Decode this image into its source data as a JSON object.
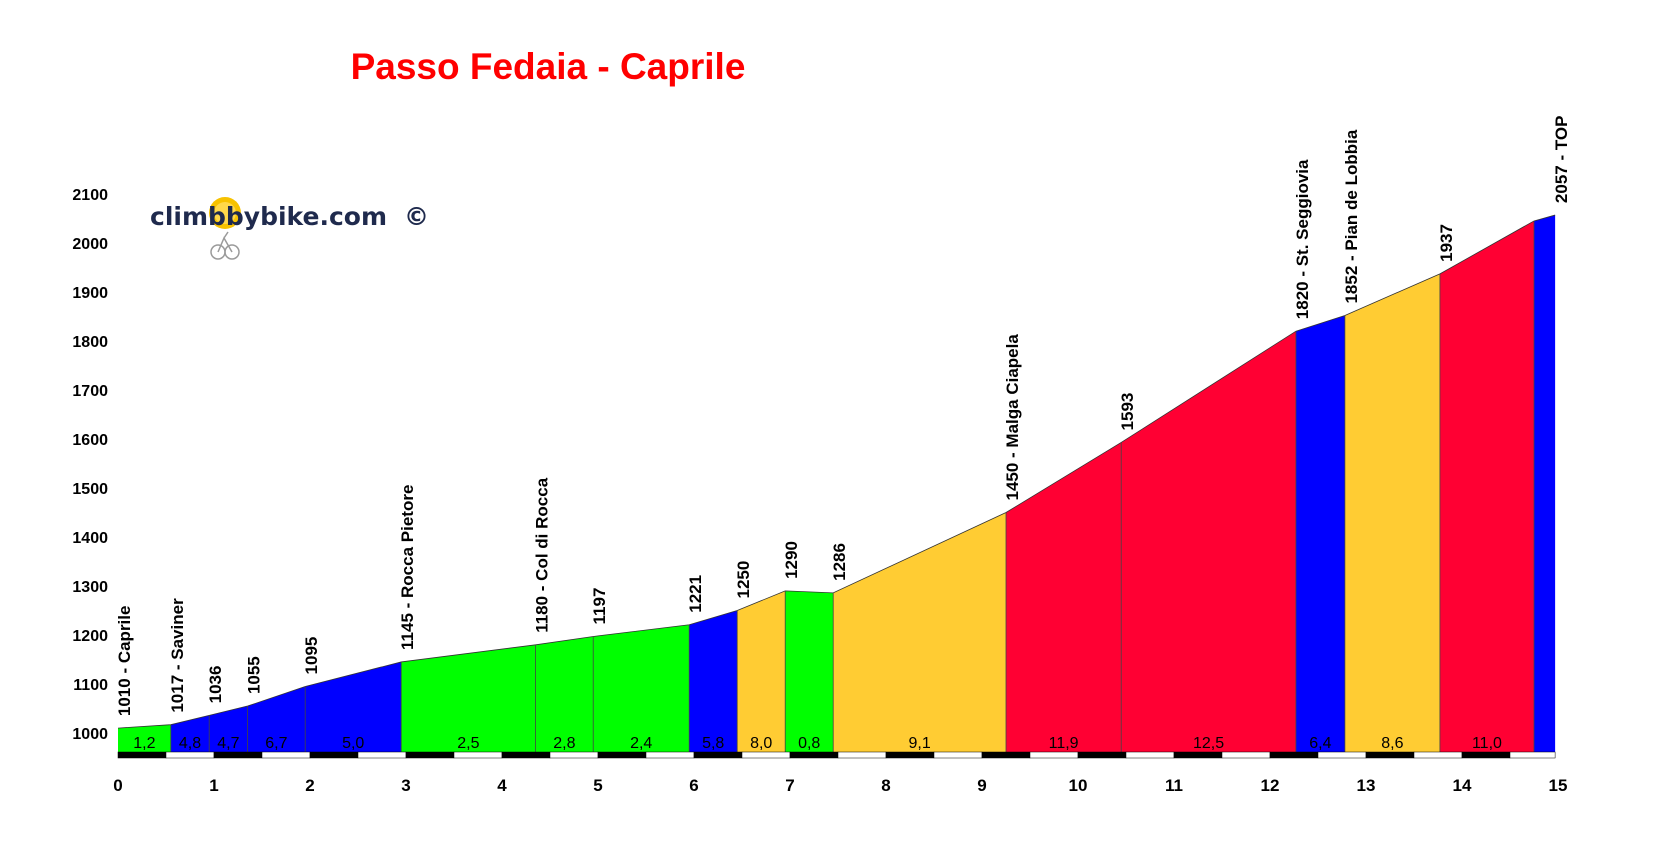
{
  "chart_data": {
    "type": "area",
    "title": "Passo Fedaia - Caprile",
    "xlabel": "",
    "ylabel": "",
    "xlim": [
      0,
      15
    ],
    "ylim": [
      950,
      2100
    ],
    "x_ticks": [
      "0",
      "1",
      "2",
      "3",
      "4",
      "5",
      "6",
      "7",
      "8",
      "9",
      "10",
      "11",
      "12",
      "13",
      "14",
      "15"
    ],
    "y_ticks": [
      1000,
      1100,
      1200,
      1300,
      1400,
      1500,
      1600,
      1700,
      1800,
      1900,
      2000,
      2100
    ],
    "grid": false,
    "colors": {
      "green": "#00ff00",
      "blue": "#0000ff",
      "orange": "#ffcc33",
      "red": "#ff0033"
    },
    "points": [
      {
        "x": 0,
        "y": 1010,
        "label": "1010 - Caprile"
      },
      {
        "x": 0.55,
        "y": 1017,
        "label": "1017 - Saviner"
      },
      {
        "x": 0.95,
        "y": 1036,
        "label": "1036"
      },
      {
        "x": 1.35,
        "y": 1055,
        "label": "1055"
      },
      {
        "x": 1.95,
        "y": 1095,
        "label": "1095"
      },
      {
        "x": 2.95,
        "y": 1145,
        "label": "1145 - Rocca Pietore"
      },
      {
        "x": 4.35,
        "y": 1180,
        "label": "1180 - Col di Rocca"
      },
      {
        "x": 4.95,
        "y": 1197,
        "label": "1197"
      },
      {
        "x": 5.95,
        "y": 1221,
        "label": "1221"
      },
      {
        "x": 6.45,
        "y": 1250,
        "label": "1250"
      },
      {
        "x": 6.95,
        "y": 1290,
        "label": "1290"
      },
      {
        "x": 7.45,
        "y": 1286,
        "label": "1286"
      },
      {
        "x": 9.25,
        "y": 1450,
        "label": "1450 - Malga Ciapela"
      },
      {
        "x": 10.45,
        "y": 1593,
        "label": "1593"
      },
      {
        "x": 12.27,
        "y": 1820,
        "label": "1820 - St. Seggiovia"
      },
      {
        "x": 12.78,
        "y": 1852,
        "label": "1852 - Pian de Lobbia"
      },
      {
        "x": 13.77,
        "y": 1937,
        "label": "1937"
      },
      {
        "x": 14.75,
        "y": 2045,
        "label": ""
      },
      {
        "x": 14.97,
        "y": 2057,
        "label": "2057 - TOP"
      }
    ],
    "segments": [
      {
        "grade": "1,2",
        "color": "green"
      },
      {
        "grade": "4,8",
        "color": "blue"
      },
      {
        "grade": "4,7",
        "color": "blue"
      },
      {
        "grade": "6,7",
        "color": "blue"
      },
      {
        "grade": "5,0",
        "color": "blue"
      },
      {
        "grade": "2,5",
        "color": "green"
      },
      {
        "grade": "2,8",
        "color": "green"
      },
      {
        "grade": "2,4",
        "color": "green"
      },
      {
        "grade": "5,8",
        "color": "blue"
      },
      {
        "grade": "8,0",
        "color": "orange"
      },
      {
        "grade": "0,8",
        "color": "green"
      },
      {
        "grade": "9,1",
        "color": "orange"
      },
      {
        "grade": "11,9",
        "color": "red"
      },
      {
        "grade": "12,5",
        "color": "red"
      },
      {
        "grade": "6,4",
        "color": "blue"
      },
      {
        "grade": "8,6",
        "color": "orange"
      },
      {
        "grade": "11,0",
        "color": "red"
      },
      {
        "grade": "",
        "color": "blue"
      }
    ]
  },
  "watermark": {
    "text": "climbbybike.com",
    "copyright": "©",
    "icon": "cyclist-sun-icon"
  }
}
